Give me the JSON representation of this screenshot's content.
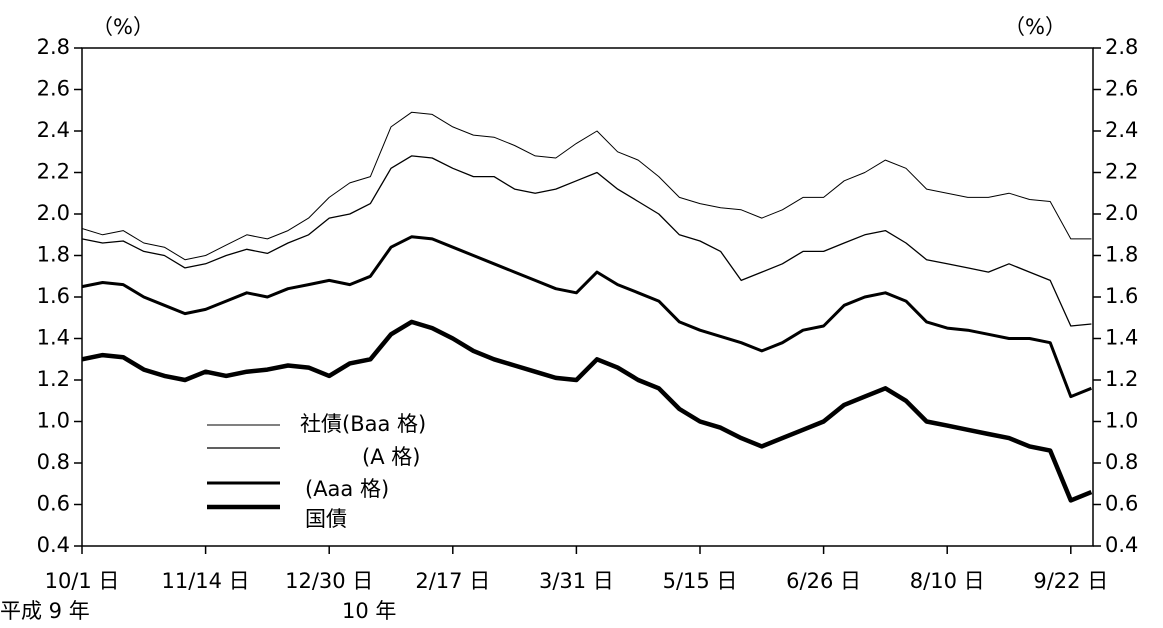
{
  "chart_data": {
    "type": "line",
    "y_unit": "（%）",
    "y2_unit": "（%）",
    "annotations": [
      "平成 9 年",
      "10 年"
    ],
    "categories": [
      "10/1 日",
      null,
      null,
      null,
      null,
      null,
      "11/14 日",
      null,
      null,
      null,
      null,
      null,
      "12/30 日",
      null,
      null,
      null,
      null,
      null,
      "2/17 日",
      null,
      null,
      null,
      null,
      null,
      "3/31 日",
      null,
      null,
      null,
      null,
      null,
      "5/15 日",
      null,
      null,
      null,
      null,
      null,
      "6/26 日",
      null,
      null,
      null,
      null,
      null,
      "8/10 日",
      null,
      null,
      null,
      null,
      null,
      "9/22 日",
      null
    ],
    "ylim": [
      0.4,
      2.8
    ],
    "yticks": [
      0.4,
      0.6,
      0.8,
      {
        "value": 1.0,
        "label": "1.0"
      },
      1.2,
      1.4,
      1.6,
      1.8,
      {
        "value": 2.0,
        "label": "2.0"
      },
      2.2,
      2.4,
      2.6,
      2.8
    ],
    "y2lim": [
      0.4,
      2.8
    ],
    "y2ticks": [
      0.4,
      0.6,
      0.8,
      {
        "value": 1.0,
        "label": "1.0"
      },
      1.2,
      1.4,
      1.6,
      1.8,
      {
        "value": 2.0,
        "label": "2.0"
      },
      2.2,
      2.4,
      2.6,
      2.8
    ],
    "series": [
      {
        "name": "社債(Baa 格)",
        "color": "#000000",
        "line_width": 1,
        "values": [
          1.93,
          1.9,
          1.92,
          1.86,
          1.84,
          1.78,
          1.8,
          1.85,
          1.9,
          1.88,
          1.92,
          1.98,
          2.08,
          2.15,
          2.18,
          2.42,
          2.49,
          2.48,
          2.42,
          2.38,
          2.37,
          2.33,
          2.28,
          2.27,
          2.34,
          2.4,
          2.3,
          2.26,
          2.18,
          2.08,
          2.05,
          2.03,
          2.02,
          1.98,
          2.02,
          2.08,
          2.08,
          2.16,
          2.2,
          2.26,
          2.22,
          2.12,
          2.1,
          2.08,
          2.08,
          2.1,
          2.07,
          2.06,
          1.88,
          1.88
        ]
      },
      {
        "name": "(A 格)",
        "color": "#000000",
        "line_width": 1.3,
        "values": [
          1.88,
          1.86,
          1.87,
          1.82,
          1.8,
          1.74,
          1.76,
          1.8,
          1.83,
          1.81,
          1.86,
          1.9,
          1.98,
          2.0,
          2.05,
          2.22,
          2.28,
          2.27,
          2.22,
          2.18,
          2.18,
          2.12,
          2.1,
          2.12,
          2.16,
          2.2,
          2.12,
          2.06,
          2.0,
          1.9,
          1.87,
          1.82,
          1.68,
          1.72,
          1.76,
          1.82,
          1.82,
          1.86,
          1.9,
          1.92,
          1.86,
          1.78,
          1.76,
          1.74,
          1.72,
          1.76,
          1.72,
          1.68,
          1.46,
          1.47
        ]
      },
      {
        "name": "(Aaa 格)",
        "color": "#000000",
        "line_width": 3,
        "values": [
          1.65,
          1.67,
          1.66,
          1.6,
          1.56,
          1.52,
          1.54,
          1.58,
          1.62,
          1.6,
          1.64,
          1.66,
          1.68,
          1.66,
          1.7,
          1.84,
          1.89,
          1.88,
          1.84,
          1.8,
          1.76,
          1.72,
          1.68,
          1.64,
          1.62,
          1.72,
          1.66,
          1.62,
          1.58,
          1.48,
          1.44,
          1.41,
          1.38,
          1.34,
          1.38,
          1.44,
          1.46,
          1.56,
          1.6,
          1.62,
          1.58,
          1.48,
          1.45,
          1.44,
          1.42,
          1.4,
          1.4,
          1.38,
          1.12,
          1.16
        ]
      },
      {
        "name": "国債",
        "color": "#000000",
        "line_width": 4.5,
        "values": [
          1.3,
          1.32,
          1.31,
          1.25,
          1.22,
          1.2,
          1.24,
          1.22,
          1.24,
          1.25,
          1.27,
          1.26,
          1.22,
          1.28,
          1.3,
          1.42,
          1.48,
          1.45,
          1.4,
          1.34,
          1.3,
          1.27,
          1.24,
          1.21,
          1.2,
          1.3,
          1.26,
          1.2,
          1.16,
          1.06,
          1.0,
          0.97,
          0.92,
          0.88,
          0.92,
          0.96,
          1.0,
          1.08,
          1.12,
          1.16,
          1.1,
          1.0,
          0.98,
          0.96,
          0.94,
          0.92,
          0.88,
          0.86,
          0.62,
          0.66
        ]
      }
    ]
  }
}
